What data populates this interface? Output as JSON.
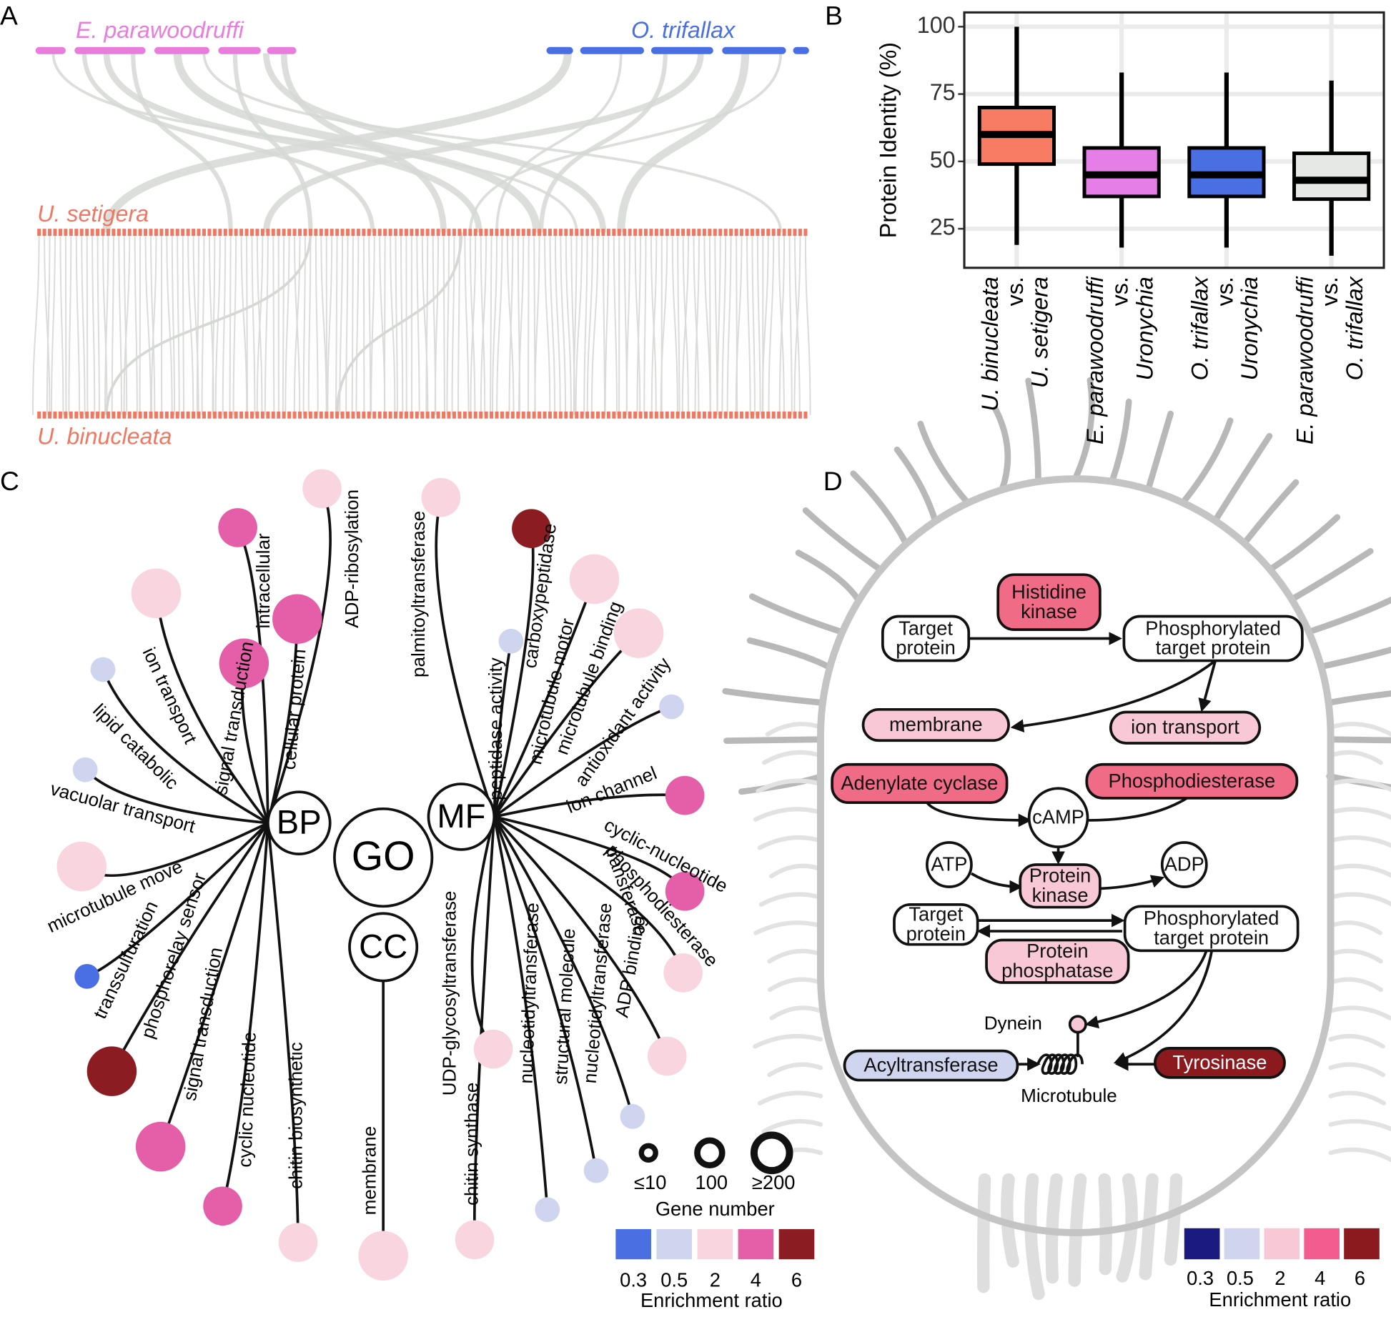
{
  "panels": [
    "A",
    "B",
    "C",
    "D"
  ],
  "panel_a": {
    "top": [
      {
        "name": "E. parawoodruffi",
        "color": "#e87ddb"
      },
      {
        "name": "O. trifallax",
        "color": "#4a6fe3"
      }
    ],
    "bottom": [
      {
        "name": "U. setigera",
        "color": "#f07862"
      },
      {
        "name": "U. binucleata",
        "color": "#f07862"
      }
    ]
  },
  "chart_data": {
    "type": "box",
    "ylabel": "Protein Identity (%)",
    "categories": [
      [
        "U. binucleata",
        "vs.",
        "U. setigera"
      ],
      [
        "E. parawoodruffi",
        "vs.",
        "Uronychia"
      ],
      [
        "O. trifallax",
        "vs.",
        "Uronychia"
      ],
      [
        "E. parawoodruffi",
        "vs.",
        "O. trifallax"
      ]
    ],
    "values": [
      {
        "min": 19,
        "q1": 49,
        "median": 60,
        "q3": 70,
        "max": 100
      },
      {
        "min": 18,
        "q1": 37,
        "median": 45,
        "q3": 55,
        "max": 83
      },
      {
        "min": 18,
        "q1": 37,
        "median": 45,
        "q3": 55,
        "max": 83
      },
      {
        "min": 15,
        "q1": 36,
        "median": 43,
        "q3": 53,
        "max": 80
      }
    ],
    "colors": [
      "#f87c64",
      "#e67ee8",
      "#4a6fe3",
      "#e6e8e6"
    ],
    "ylim": [
      10.5,
      105.3
    ],
    "yticks": [
      25,
      50,
      75,
      100
    ],
    "grid": true
  },
  "go_network": {
    "hubs": [
      "GO",
      "BP",
      "MF",
      "CC"
    ],
    "terms": [
      {
        "label": "ADP-ribosylation",
        "color": "#f9d5e0"
      },
      {
        "label": "intracellular",
        "color": "#e55ea8"
      },
      {
        "label": "cellular protein",
        "color": "#e55ea8"
      },
      {
        "label": "signal transduction",
        "color": "#e55ea8"
      },
      {
        "label": "ion transport",
        "color": "#f9d5e0"
      },
      {
        "label": "lipid catabolic",
        "color": "#cfd5ef"
      },
      {
        "label": "vacuolar transport",
        "color": "#cfd5ef"
      },
      {
        "label": "microtubule move",
        "color": "#f9d5e0"
      },
      {
        "label": "transsulfuration",
        "color": "#4a6ee3"
      },
      {
        "label": "phosphorelay sensor",
        "color": "#8a1c22"
      },
      {
        "label": "signal transduction",
        "color": "#e55ea8"
      },
      {
        "label": "cyclic nucleotide",
        "color": "#e55ea8"
      },
      {
        "label": "chitin biosynthetic",
        "color": "#f9d5e0"
      },
      {
        "label": "membrane",
        "color": "#f9d5e0"
      },
      {
        "label": "palmitoyltransferase",
        "color": "#f9d5e0"
      },
      {
        "label": "carboxypeptidase",
        "color": "#8a1c22"
      },
      {
        "label": "peptidase activity",
        "color": "#cfd5ef"
      },
      {
        "label": "microtubule motor",
        "color": "#f9d5e0"
      },
      {
        "label": "microtubule binding",
        "color": "#f9d5e0"
      },
      {
        "label": "antioxidant activity",
        "color": "#cfd5ef"
      },
      {
        "label": "ion channel",
        "color": "#e55ea8"
      },
      {
        "label": "cyclic-nucleotide",
        "color": "#e55ea8"
      },
      {
        "label": "phosphodiesterase",
        "color": "#f9d5e0"
      },
      {
        "label": "transferase"
      },
      {
        "label": "ADP binding",
        "color": "#f9d5e0"
      },
      {
        "label": "nucleotidyltransferase",
        "color": "#cfd5ef"
      },
      {
        "label": "structural molecule",
        "color": "#cfd5ef"
      },
      {
        "label": "nucleotidyltransferase",
        "color": "#cfd5ef"
      },
      {
        "label": "chitin synthase",
        "color": "#f9d5e0"
      },
      {
        "label": "UDP-glycosyltransferase",
        "color": "#f9d5e0"
      }
    ],
    "legend": {
      "size_labels": [
        "≤10",
        "100",
        "≥200"
      ],
      "size_title": "Gene number",
      "colors": [
        "#4a6fe3",
        "#cfd5ef",
        "#f9d5e0",
        "#e55ea8",
        "#8a1c22"
      ],
      "ticks": [
        0.3,
        0.5,
        2,
        4,
        6
      ],
      "title": "Enrichment ratio"
    }
  },
  "pathway": {
    "nodes": [
      {
        "label": [
          "Histidine",
          "kinase"
        ],
        "color": "#ef6b86"
      },
      {
        "label": [
          "Target",
          "protein"
        ],
        "color": "#ffffff"
      },
      {
        "label": [
          "Phosphorylated",
          "target protein"
        ],
        "color": "#ffffff"
      },
      {
        "label": [
          "membrane"
        ],
        "color": "#f9c8d6"
      },
      {
        "label": [
          "ion transport"
        ],
        "color": "#f9c8d6"
      },
      {
        "label": [
          "Adenylate cyclase"
        ],
        "color": "#ef6b86"
      },
      {
        "label": [
          "Phosphodiesterase"
        ],
        "color": "#ef6b86"
      },
      {
        "label": [
          "cAMP"
        ],
        "color": "#ffffff"
      },
      {
        "label": [
          "ATP"
        ],
        "color": "#ffffff"
      },
      {
        "label": [
          "ADP"
        ],
        "color": "#ffffff"
      },
      {
        "label": [
          "Protein",
          "kinase"
        ],
        "color": "#f9c8d6"
      },
      {
        "label": [
          "Target",
          "protein"
        ],
        "color": "#ffffff"
      },
      {
        "label": [
          "Phosphorylated",
          "target protein"
        ],
        "color": "#ffffff"
      },
      {
        "label": [
          "Protein",
          "phosphatase"
        ],
        "color": "#f9c8d6"
      },
      {
        "label": [
          "Acyltransferase"
        ],
        "color": "#cfd5ef"
      },
      {
        "label": [
          "Tyrosinase"
        ],
        "color": "#8b1a1f"
      }
    ],
    "labels": [
      "Dynein",
      "Microtubule"
    ],
    "dynein_color": "#f9c8d6",
    "legend": {
      "colors": [
        "#1a1a80",
        "#cfd5ef",
        "#f9c8d6",
        "#f25c8e",
        "#8b1a1f"
      ],
      "ticks": [
        0.3,
        0.5,
        2,
        4,
        6
      ],
      "title": "Enrichment ratio"
    }
  }
}
